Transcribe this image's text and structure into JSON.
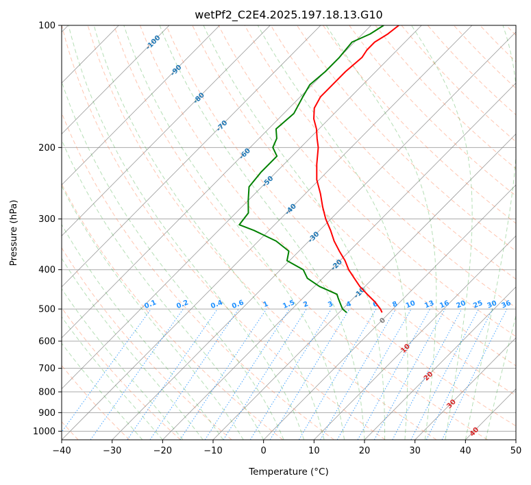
{
  "chart_data": {
    "type": "line",
    "subtype": "skew-t log-p diagram",
    "title": "wetPf2_C2E4.2025.197.18.13.G10",
    "xlabel": "Temperature (°C)",
    "ylabel": "Pressure (hPa)",
    "xlim": [
      -40,
      50
    ],
    "ylim": [
      1050,
      100
    ],
    "y_scale": "log",
    "x_ticks": [
      "−40",
      "−30",
      "−20",
      "−10",
      "0",
      "10",
      "20",
      "30",
      "40",
      "50"
    ],
    "y_ticks": [
      "100",
      "200",
      "300",
      "400",
      "500",
      "600",
      "700",
      "800",
      "900",
      "1000"
    ],
    "grid": true,
    "colors": {
      "temperature": "#ff0000",
      "dewpoint": "#008000",
      "isotherm_grid": "#7f7f7f",
      "isobar_grid": "#aaaaaa",
      "dry_adiabat": "#ff7f50",
      "moist_adiabat": "#2ca02c",
      "mixing_ratio": "#1e90ff",
      "isotherm_label": "#1f77b4",
      "warm_isotherm_label": "#d62728",
      "zero_label": "#7f7f7f"
    },
    "isotherm_labels": [
      "-100",
      "-90",
      "-80",
      "-70",
      "-60",
      "-50",
      "-40",
      "-30",
      "-20",
      "-10",
      "0",
      "10",
      "20",
      "30",
      "40"
    ],
    "mixing_ratio_labels": [
      "0.1",
      "0.2",
      "0.4",
      "0.6",
      "1",
      "1.5",
      "2",
      "3",
      "4",
      "6",
      "8",
      "10",
      "13",
      "16",
      "20",
      "25",
      "30",
      "36"
    ],
    "series": [
      {
        "key": "temperature",
        "points": [
          [
            100,
            -54.5
          ],
          [
            105,
            -55.0
          ],
          [
            110,
            -56.0
          ],
          [
            115,
            -56.0
          ],
          [
            120,
            -55.5
          ],
          [
            130,
            -56.0
          ],
          [
            140,
            -56.0
          ],
          [
            150,
            -56.0
          ],
          [
            160,
            -55.0
          ],
          [
            170,
            -53.0
          ],
          [
            180,
            -50.5
          ],
          [
            190,
            -48.5
          ],
          [
            200,
            -46.5
          ],
          [
            220,
            -43.5
          ],
          [
            240,
            -40.5
          ],
          [
            260,
            -37.0
          ],
          [
            280,
            -34.0
          ],
          [
            300,
            -31.0
          ],
          [
            320,
            -27.8
          ],
          [
            340,
            -25.0
          ],
          [
            360,
            -22.0
          ],
          [
            380,
            -19.0
          ],
          [
            400,
            -16.5
          ],
          [
            420,
            -13.7
          ],
          [
            440,
            -11.0
          ],
          [
            460,
            -8.0
          ],
          [
            480,
            -5.0
          ],
          [
            500,
            -2.5
          ],
          [
            510,
            -1.5
          ]
        ]
      },
      {
        "key": "dewpoint",
        "points": [
          [
            100,
            -57.5
          ],
          [
            105,
            -58.5
          ],
          [
            110,
            -60.5
          ],
          [
            120,
            -60.0
          ],
          [
            130,
            -60.0
          ],
          [
            140,
            -60.5
          ],
          [
            150,
            -59.5
          ],
          [
            165,
            -58.0
          ],
          [
            180,
            -58.5
          ],
          [
            190,
            -56.5
          ],
          [
            200,
            -55.5
          ],
          [
            210,
            -53.0
          ],
          [
            230,
            -53.0
          ],
          [
            250,
            -52.5
          ],
          [
            270,
            -50.0
          ],
          [
            290,
            -47.5
          ],
          [
            310,
            -47.0
          ],
          [
            320,
            -43.0
          ],
          [
            340,
            -36.5
          ],
          [
            360,
            -32.0
          ],
          [
            380,
            -30.5
          ],
          [
            400,
            -25.5
          ],
          [
            420,
            -23.0
          ],
          [
            440,
            -19.0
          ],
          [
            460,
            -14.0
          ],
          [
            470,
            -13.0
          ],
          [
            490,
            -11.0
          ],
          [
            500,
            -10.0
          ],
          [
            510,
            -8.5
          ]
        ]
      }
    ]
  }
}
